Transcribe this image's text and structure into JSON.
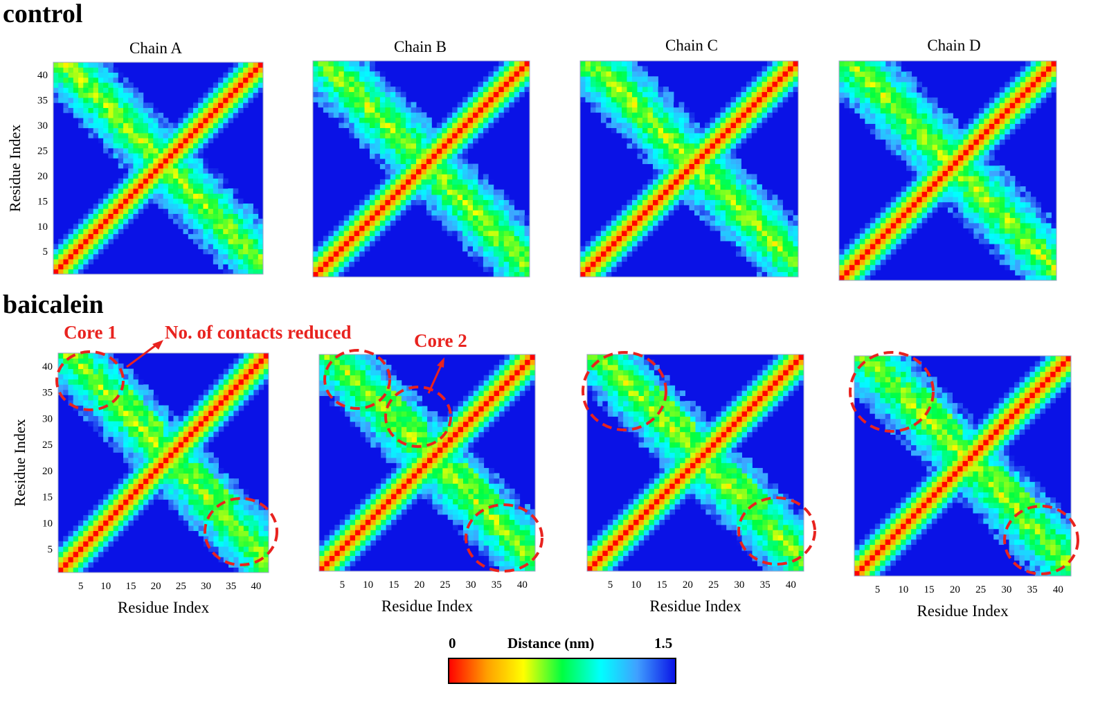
{
  "sections": {
    "control": "control",
    "baicalein": "baicalein"
  },
  "titles": [
    "Chain A",
    "Chain B",
    "Chain C",
    "Chain D"
  ],
  "annotations": {
    "core1": "Core 1",
    "contacts": "No. of contacts reduced",
    "core2": "Core 2"
  },
  "colors": {
    "annotation": "#e8231f",
    "far": "#0a12e6"
  },
  "colorbar": {
    "min_label": "0",
    "title": "Distance (nm)",
    "max_label": "1.5",
    "colors": [
      "#ff0000",
      "#ffa000",
      "#ffff00",
      "#00ff40",
      "#00ffff",
      "#40a0ff",
      "#0a12e6"
    ]
  },
  "chart_data": [
    {
      "type": "heatmap",
      "group": "control",
      "title": "Chain A",
      "xlabel": "",
      "ylabel": "Residue Index",
      "xlim": [
        1,
        42
      ],
      "ylim": [
        1,
        42
      ],
      "yticks": [
        5,
        10,
        15,
        20,
        25,
        30,
        35,
        40
      ],
      "xticks": [],
      "value": "distance (nm)",
      "colorbar": [
        0,
        1.5
      ]
    },
    {
      "type": "heatmap",
      "group": "control",
      "title": "Chain B",
      "xlabel": "",
      "ylabel": "",
      "xlim": [
        1,
        42
      ],
      "ylim": [
        1,
        42
      ],
      "yticks": [],
      "xticks": [],
      "value": "distance (nm)",
      "colorbar": [
        0,
        1.5
      ]
    },
    {
      "type": "heatmap",
      "group": "control",
      "title": "Chain C",
      "xlabel": "",
      "ylabel": "",
      "xlim": [
        1,
        42
      ],
      "ylim": [
        1,
        42
      ],
      "yticks": [],
      "xticks": [],
      "value": "distance (nm)",
      "colorbar": [
        0,
        1.5
      ]
    },
    {
      "type": "heatmap",
      "group": "control",
      "title": "Chain D",
      "xlabel": "",
      "ylabel": "",
      "xlim": [
        1,
        42
      ],
      "ylim": [
        1,
        42
      ],
      "yticks": [],
      "xticks": [],
      "value": "distance (nm)",
      "colorbar": [
        0,
        1.5
      ]
    },
    {
      "type": "heatmap",
      "group": "baicalein",
      "title": "",
      "xlabel": "Residue Index",
      "ylabel": "Residue Index",
      "xlim": [
        1,
        42
      ],
      "ylim": [
        1,
        42
      ],
      "yticks": [
        5,
        10,
        15,
        20,
        25,
        30,
        35,
        40
      ],
      "xticks": [
        5,
        10,
        15,
        20,
        25,
        30,
        35,
        40
      ],
      "value": "distance (nm)",
      "colorbar": [
        0,
        1.5
      ]
    },
    {
      "type": "heatmap",
      "group": "baicalein",
      "title": "",
      "xlabel": "Residue Index",
      "ylabel": "",
      "xlim": [
        1,
        42
      ],
      "ylim": [
        1,
        42
      ],
      "yticks": [],
      "xticks": [
        5,
        10,
        15,
        20,
        25,
        30,
        35,
        40
      ],
      "value": "distance (nm)",
      "colorbar": [
        0,
        1.5
      ]
    },
    {
      "type": "heatmap",
      "group": "baicalein",
      "title": "",
      "xlabel": "Residue Index",
      "ylabel": "",
      "xlim": [
        1,
        42
      ],
      "ylim": [
        1,
        42
      ],
      "yticks": [],
      "xticks": [
        5,
        10,
        15,
        20,
        25,
        30,
        35,
        40
      ],
      "value": "distance (nm)",
      "colorbar": [
        0,
        1.5
      ]
    },
    {
      "type": "heatmap",
      "group": "baicalein",
      "title": "",
      "xlabel": "Residue Index",
      "ylabel": "",
      "xlim": [
        1,
        42
      ],
      "ylim": [
        1,
        42
      ],
      "yticks": [],
      "xticks": [
        5,
        10,
        15,
        20,
        25,
        30,
        35,
        40
      ],
      "value": "distance (nm)",
      "colorbar": [
        0,
        1.5
      ]
    }
  ]
}
